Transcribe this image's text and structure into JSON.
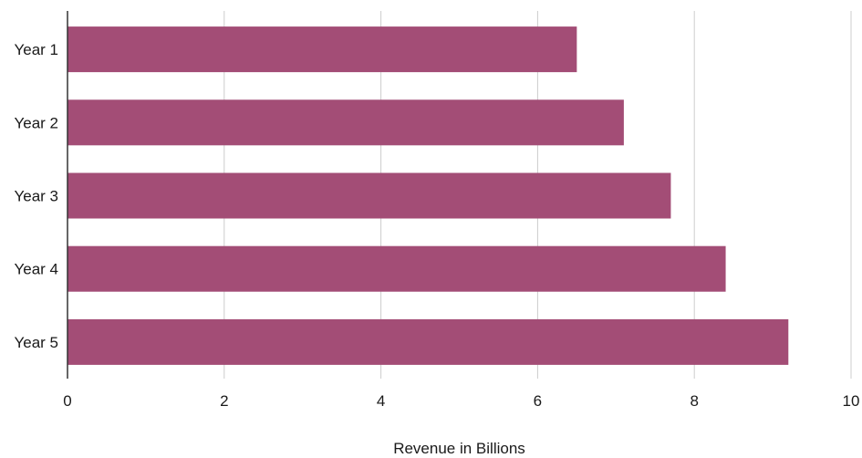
{
  "chart_data": {
    "type": "bar",
    "orientation": "horizontal",
    "title": "",
    "categories": [
      "Year 1",
      "Year 2",
      "Year 3",
      "Year 4",
      "Year 5"
    ],
    "values": [
      6.5,
      7.1,
      7.7,
      8.4,
      9.2
    ],
    "xlabel": "Revenue in Billions",
    "ylabel": "",
    "xlim": [
      0,
      10
    ],
    "xticks": [
      "0",
      "2",
      "4",
      "6",
      "8",
      "10"
    ],
    "grid": "vertical",
    "legend": "none",
    "colors": {
      "bar": "#a34d76",
      "grid": "#cccccc",
      "axis": "#333333"
    }
  }
}
